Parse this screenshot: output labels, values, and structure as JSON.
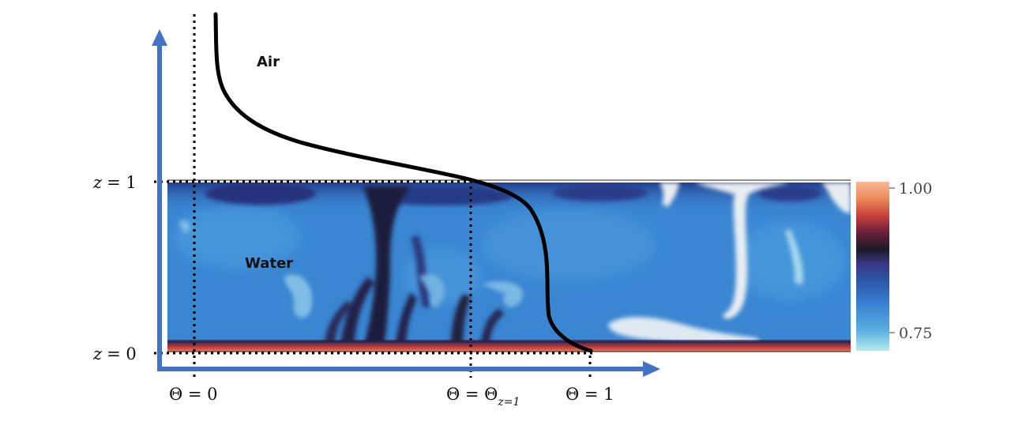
{
  "labels": {
    "air": "Air",
    "water": "Water"
  },
  "axis": {
    "z1_var": "z",
    "z1_val": "= 1",
    "z0_var": "z",
    "z0_val": "= 0",
    "theta0": "Θ = 0",
    "theta_zeq1_main": "Θ = Θ",
    "theta_zeq1_sub": "z=1",
    "theta1": "Θ = 1"
  },
  "colorbar": {
    "max_label": "1.00",
    "min_label": "0.75",
    "stops": [
      "#9fe0e0",
      "#3f8fd8",
      "#2b5fb8",
      "#3a3a8a",
      "#1c1c28",
      "#8a2040",
      "#d85040",
      "#f0905a",
      "#f6b090"
    ]
  },
  "colors": {
    "axis": "#4472c4",
    "water_base": "#3a86d2",
    "water_dark": "#1f3f92",
    "plume": "#20204a",
    "hot_bottom": "#e0503a",
    "cold_white": "#e8edf2"
  },
  "icons": {
    "axis_arrow": "arrowhead"
  }
}
